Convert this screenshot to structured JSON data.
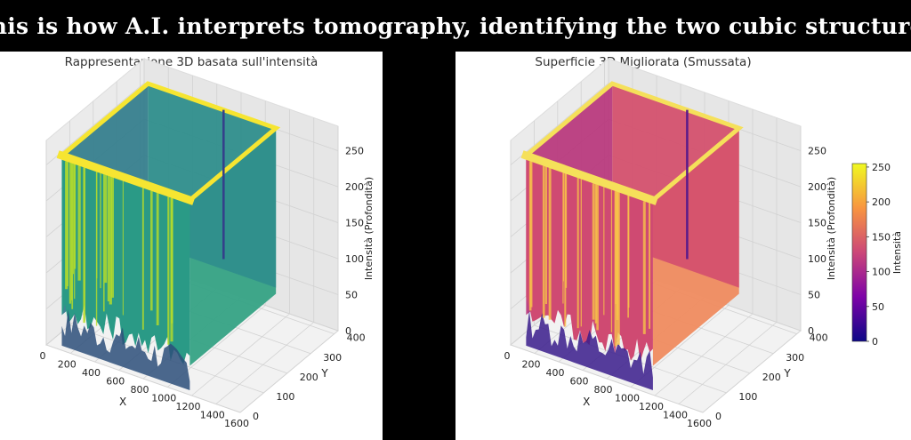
{
  "banner": {
    "text": "This is how A.I. interprets tomography, identifying the two cubic structures"
  },
  "chart_data": [
    {
      "type": "surface-3d",
      "title": "Rappresentazione 3D basata sull'intensità",
      "colormap": "viridis",
      "xlabel": "X",
      "ylabel": "Y",
      "zlabel": "Intensità (Profondità)",
      "x_ticks": [
        "0",
        "200",
        "400",
        "600",
        "800",
        "1000",
        "1200",
        "1400",
        "1600"
      ],
      "y_ticks": [
        "0",
        "100",
        "200",
        "300",
        "400"
      ],
      "z_ticks": [
        "0",
        "50",
        "100",
        "150",
        "200",
        "250"
      ],
      "xlim": [
        0,
        1600
      ],
      "ylim": [
        0,
        450
      ],
      "zlim": [
        0,
        255
      ],
      "grid": true
    },
    {
      "type": "surface-3d",
      "title": "Superficie 3D Migliorata (Smussata)",
      "colormap": "plasma",
      "xlabel": "X",
      "ylabel": "Y",
      "zlabel": "Intensità (Profondità)",
      "x_ticks": [
        "0",
        "200",
        "400",
        "600",
        "800",
        "1000",
        "1200",
        "1400",
        "1600"
      ],
      "y_ticks": [
        "0",
        "100",
        "200",
        "300",
        "400"
      ],
      "z_ticks": [
        "0",
        "50",
        "100",
        "150",
        "200",
        "250"
      ],
      "xlim": [
        0,
        1600
      ],
      "ylim": [
        0,
        450
      ],
      "zlim": [
        0,
        255
      ],
      "grid": true,
      "colorbar": {
        "label": "Intensità",
        "ticks": [
          "0",
          "50",
          "100",
          "150",
          "200",
          "250"
        ],
        "range": [
          0,
          255
        ]
      }
    }
  ]
}
